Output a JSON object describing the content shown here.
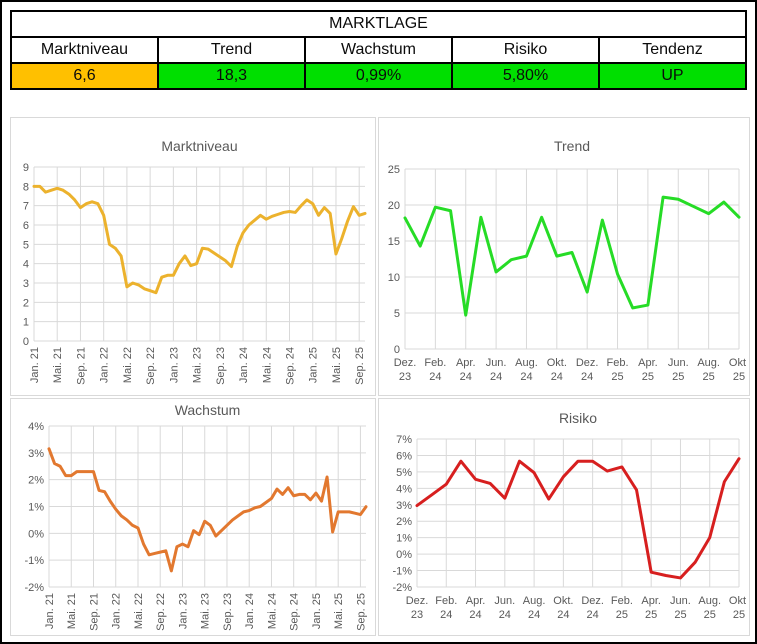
{
  "summary_table": {
    "title": "MARKTLAGE",
    "columns": [
      "Marktniveau",
      "Trend",
      "Wachstum",
      "Risiko",
      "Tendenz"
    ],
    "values": [
      "6,6",
      "18,3",
      "0,99%",
      "5,80%",
      "UP"
    ],
    "value_colors": [
      "#FFC000",
      "#00DF00",
      "#00DF00",
      "#00DF00",
      "#00DF00"
    ]
  },
  "colors": {
    "grid": "#D9D9D9",
    "chart_text": "#595959",
    "table_border": "#000000"
  },
  "chart_data": [
    {
      "type": "line",
      "title": "Marktniveau",
      "color": "#ECB22D",
      "ylim": [
        0,
        9
      ],
      "ystep": 1,
      "y_tick_labels": [
        "0",
        "1",
        "2",
        "3",
        "4",
        "5",
        "6",
        "7",
        "8",
        "9"
      ],
      "x_tick_labels": [
        "Jan. 21",
        "Mai. 21",
        "Sep. 21",
        "Jan. 22",
        "Mai. 22",
        "Sep. 22",
        "Jan. 23",
        "Mai. 23",
        "Sep. 23",
        "Jan. 24",
        "Mai. 24",
        "Sep. 24",
        "Jan. 25",
        "Mai. 25",
        "Sep. 25"
      ],
      "x_tick_every": 4,
      "x_start": "Jan 2021",
      "x_freq": "monthly",
      "values": [
        8.0,
        8.0,
        7.7,
        7.8,
        7.9,
        7.8,
        7.6,
        7.3,
        6.9,
        7.1,
        7.2,
        7.1,
        6.5,
        5.0,
        4.8,
        4.4,
        2.8,
        3.0,
        2.9,
        2.7,
        2.6,
        2.5,
        3.3,
        3.4,
        3.4,
        4.0,
        4.4,
        3.9,
        4.0,
        4.8,
        4.75,
        4.55,
        4.35,
        4.15,
        3.85,
        4.9,
        5.6,
        6.0,
        6.25,
        6.5,
        6.3,
        6.45,
        6.55,
        6.65,
        6.7,
        6.65,
        7.0,
        7.3,
        7.1,
        6.5,
        6.9,
        6.6,
        4.5,
        5.3,
        6.2,
        6.95,
        6.5,
        6.6
      ]
    },
    {
      "type": "line",
      "title": "Trend",
      "color": "#26DC26",
      "ylim": [
        0,
        25
      ],
      "ystep": 5,
      "y_tick_labels": [
        "0",
        "5",
        "10",
        "15",
        "20",
        "25"
      ],
      "x_tick_labels": [
        "Dez. 23",
        "Feb. 24",
        "Apr. 24",
        "Jun. 24",
        "Aug. 24",
        "Okt. 24",
        "Dez. 24",
        "Feb. 25",
        "Apr. 25",
        "Jun. 25",
        "Aug. 25",
        "Okt. 25"
      ],
      "x_tick_every": 2,
      "x_start": "Dez 2023",
      "x_freq": "monthly",
      "values": [
        18.2,
        14.3,
        19.7,
        19.2,
        4.7,
        18.3,
        10.7,
        12.4,
        12.9,
        18.3,
        12.9,
        13.4,
        7.9,
        17.9,
        10.4,
        5.7,
        6.1,
        21.1,
        20.8,
        19.8,
        18.8,
        20.4,
        18.3
      ]
    },
    {
      "type": "line",
      "title": "Wachstum",
      "color": "#E2782F",
      "ylim": [
        -2,
        4
      ],
      "ystep": 1,
      "y_tick_labels": [
        "-2%",
        "-1%",
        "0%",
        "1%",
        "2%",
        "3%",
        "4%"
      ],
      "x_tick_labels": [
        "Jan. 21",
        "Mai. 21",
        "Sep. 21",
        "Jan. 22",
        "Mai. 22",
        "Sep. 22",
        "Jan. 23",
        "Mai. 23",
        "Sep. 23",
        "Jan. 24",
        "Mai. 24",
        "Sep. 24",
        "Jan. 25",
        "Mai. 25",
        "Sep. 25"
      ],
      "x_tick_every": 4,
      "x_start": "Jan 2021",
      "x_freq": "monthly",
      "values": [
        3.15,
        2.6,
        2.5,
        2.15,
        2.15,
        2.3,
        2.3,
        2.3,
        2.3,
        1.6,
        1.55,
        1.2,
        0.9,
        0.65,
        0.5,
        0.3,
        0.2,
        -0.4,
        -0.8,
        -0.75,
        -0.7,
        -0.65,
        -1.4,
        -0.5,
        -0.4,
        -0.5,
        0.1,
        -0.05,
        0.45,
        0.3,
        -0.1,
        0.1,
        0.3,
        0.5,
        0.65,
        0.8,
        0.85,
        0.95,
        1.0,
        1.15,
        1.3,
        1.65,
        1.45,
        1.7,
        1.4,
        1.45,
        1.45,
        1.25,
        1.5,
        1.2,
        2.1,
        0.05,
        0.8,
        0.8,
        0.8,
        0.75,
        0.7,
        0.99
      ]
    },
    {
      "type": "line",
      "title": "Risiko",
      "color": "#D71F1F",
      "ylim": [
        -2,
        7
      ],
      "ystep": 1,
      "y_tick_labels": [
        "-2%",
        "-1%",
        "0%",
        "1%",
        "2%",
        "3%",
        "4%",
        "5%",
        "6%",
        "7%"
      ],
      "x_tick_labels": [
        "Dez. 23",
        "Feb. 24",
        "Apr. 24",
        "Jun. 24",
        "Aug. 24",
        "Okt. 24",
        "Dez. 24",
        "Feb. 25",
        "Apr. 25",
        "Jun. 25",
        "Aug. 25",
        "Okt. 25"
      ],
      "x_tick_every": 2,
      "x_start": "Dez 2023",
      "x_freq": "monthly",
      "values": [
        2.95,
        3.6,
        4.25,
        5.65,
        4.55,
        4.3,
        3.4,
        5.65,
        4.95,
        3.35,
        4.7,
        5.65,
        5.65,
        5.05,
        5.3,
        3.9,
        -1.1,
        -1.3,
        -1.45,
        -0.5,
        1.0,
        4.4,
        5.8
      ]
    }
  ]
}
